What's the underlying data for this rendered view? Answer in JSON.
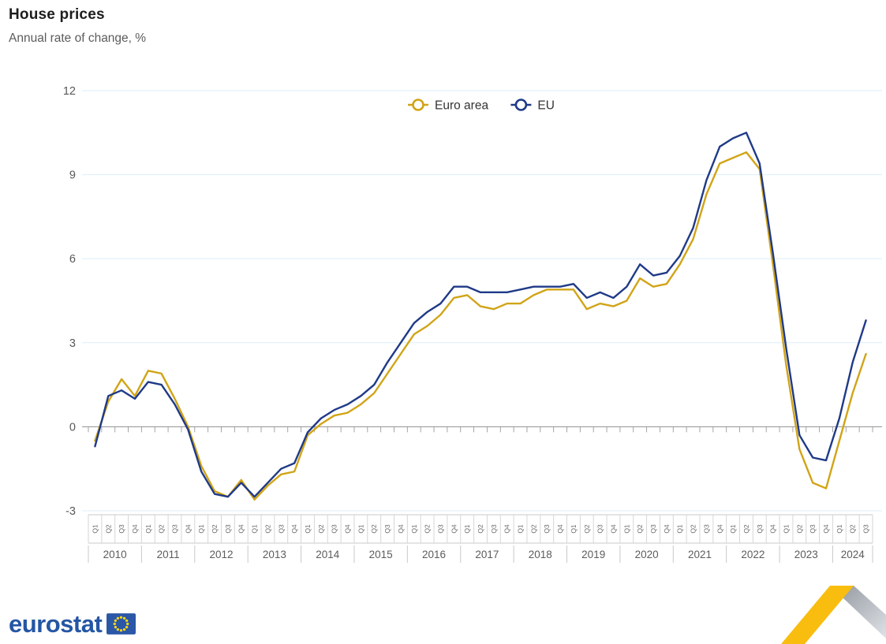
{
  "page": {
    "title": "House prices",
    "subtitle": "Annual rate of change, %"
  },
  "chart_data": {
    "type": "line",
    "title": "House prices",
    "subtitle": "Annual rate of change, %",
    "unit": "%",
    "ylim": [
      -3,
      12
    ],
    "yticks": [
      -3,
      0,
      3,
      6,
      9,
      12
    ],
    "grid": true,
    "legend_position": "top-center",
    "grid_color": "#dceef8",
    "zero_axis_color": "#8f8f8f",
    "years": [
      {
        "label": "2010",
        "quarters": 4
      },
      {
        "label": "2011",
        "quarters": 4
      },
      {
        "label": "2012",
        "quarters": 4
      },
      {
        "label": "2013",
        "quarters": 4
      },
      {
        "label": "2014",
        "quarters": 4
      },
      {
        "label": "2015",
        "quarters": 4
      },
      {
        "label": "2016",
        "quarters": 4
      },
      {
        "label": "2017",
        "quarters": 4
      },
      {
        "label": "2018",
        "quarters": 4
      },
      {
        "label": "2019",
        "quarters": 4
      },
      {
        "label": "2020",
        "quarters": 4
      },
      {
        "label": "2021",
        "quarters": 4
      },
      {
        "label": "2022",
        "quarters": 4
      },
      {
        "label": "2023",
        "quarters": 4
      },
      {
        "label": "2024",
        "quarters": 3
      }
    ],
    "categories": [
      "2010-Q1",
      "2010-Q2",
      "2010-Q3",
      "2010-Q4",
      "2011-Q1",
      "2011-Q2",
      "2011-Q3",
      "2011-Q4",
      "2012-Q1",
      "2012-Q2",
      "2012-Q3",
      "2012-Q4",
      "2013-Q1",
      "2013-Q2",
      "2013-Q3",
      "2013-Q4",
      "2014-Q1",
      "2014-Q2",
      "2014-Q3",
      "2014-Q4",
      "2015-Q1",
      "2015-Q2",
      "2015-Q3",
      "2015-Q4",
      "2016-Q1",
      "2016-Q2",
      "2016-Q3",
      "2016-Q4",
      "2017-Q1",
      "2017-Q2",
      "2017-Q3",
      "2017-Q4",
      "2018-Q1",
      "2018-Q2",
      "2018-Q3",
      "2018-Q4",
      "2019-Q1",
      "2019-Q2",
      "2019-Q3",
      "2019-Q4",
      "2020-Q1",
      "2020-Q2",
      "2020-Q3",
      "2020-Q4",
      "2021-Q1",
      "2021-Q2",
      "2021-Q3",
      "2021-Q4",
      "2022-Q1",
      "2022-Q2",
      "2022-Q3",
      "2022-Q4",
      "2023-Q1",
      "2023-Q2",
      "2023-Q3",
      "2023-Q4",
      "2024-Q1",
      "2024-Q2",
      "2024-Q3"
    ],
    "series": [
      {
        "name": "Euro area",
        "color": "#D1A417",
        "values": [
          -0.5,
          0.9,
          1.7,
          1.1,
          2.0,
          1.9,
          1.0,
          0.0,
          -1.4,
          -2.3,
          -2.5,
          -1.9,
          -2.6,
          -2.1,
          -1.7,
          -1.6,
          -0.3,
          0.1,
          0.4,
          0.5,
          0.8,
          1.2,
          1.9,
          2.6,
          3.3,
          3.6,
          4.0,
          4.6,
          4.7,
          4.3,
          4.2,
          4.4,
          4.4,
          4.7,
          4.9,
          4.9,
          4.9,
          4.2,
          4.4,
          4.3,
          4.5,
          5.3,
          5.0,
          5.1,
          5.8,
          6.7,
          8.3,
          9.4,
          9.6,
          9.8,
          9.2,
          5.8,
          2.2,
          -0.8,
          -2.0,
          -2.2,
          -0.5,
          1.2,
          2.6
        ]
      },
      {
        "name": "EU",
        "color": "#1F3A87",
        "values": [
          -0.7,
          1.1,
          1.3,
          1.0,
          1.6,
          1.5,
          0.8,
          -0.1,
          -1.6,
          -2.4,
          -2.5,
          -2.0,
          -2.5,
          -2.0,
          -1.5,
          -1.3,
          -0.2,
          0.3,
          0.6,
          0.8,
          1.1,
          1.5,
          2.3,
          3.0,
          3.7,
          4.1,
          4.4,
          5.0,
          5.0,
          4.8,
          4.8,
          4.8,
          4.9,
          5.0,
          5.0,
          5.0,
          5.1,
          4.6,
          4.8,
          4.6,
          5.0,
          5.8,
          5.4,
          5.5,
          6.1,
          7.1,
          8.8,
          10.0,
          10.3,
          10.5,
          9.4,
          6.2,
          2.8,
          -0.3,
          -1.1,
          -1.2,
          0.3,
          2.3,
          3.8
        ]
      }
    ]
  },
  "footer": {
    "logo_text": "eurostat"
  }
}
